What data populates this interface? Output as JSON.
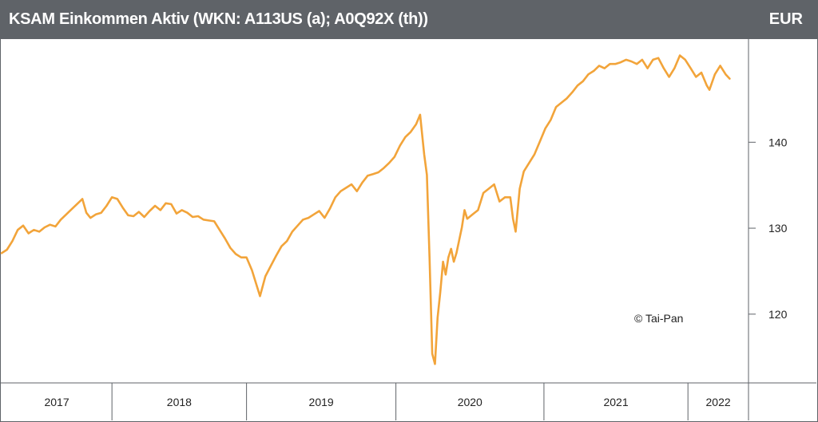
{
  "header": {
    "title": "KSAM Einkommen Aktiv (WKN: A113US (a); A0Q92X (th))",
    "currency": "EUR"
  },
  "copyright": "© Tai-Pan",
  "colors": {
    "line": "#f2a43a",
    "header_bg": "#5f6368",
    "border": "#5f6368"
  },
  "chart_data": {
    "type": "line",
    "title": "KSAM Einkommen Aktiv (WKN: A113US (a); A0Q92X (th))",
    "ylabel": "EUR",
    "yticks": [
      120,
      130,
      140
    ],
    "ylim": [
      112,
      152
    ],
    "xlim": [
      2017.0,
      2022.55
    ],
    "year_labels": [
      {
        "label": "2017",
        "start": 2017.0,
        "end": 2017.82
      },
      {
        "label": "2018",
        "start": 2017.82,
        "end": 2018.82
      },
      {
        "label": "2019",
        "start": 2018.82,
        "end": 2019.93
      },
      {
        "label": "2020",
        "start": 2019.93,
        "end": 2021.03
      },
      {
        "label": "2021",
        "start": 2021.03,
        "end": 2022.1
      },
      {
        "label": "2022",
        "start": 2022.1,
        "end": 2022.55
      }
    ],
    "series": [
      {
        "values": [
          [
            2017.0,
            127.1
          ],
          [
            2017.04,
            127.5
          ],
          [
            2017.08,
            128.5
          ],
          [
            2017.12,
            129.8
          ],
          [
            2017.16,
            130.3
          ],
          [
            2017.2,
            129.4
          ],
          [
            2017.24,
            129.8
          ],
          [
            2017.28,
            129.6
          ],
          [
            2017.32,
            130.1
          ],
          [
            2017.36,
            130.4
          ],
          [
            2017.4,
            130.2
          ],
          [
            2017.44,
            131.0
          ],
          [
            2017.48,
            131.6
          ],
          [
            2017.52,
            132.2
          ],
          [
            2017.56,
            132.8
          ],
          [
            2017.6,
            133.4
          ],
          [
            2017.63,
            131.8
          ],
          [
            2017.66,
            131.2
          ],
          [
            2017.7,
            131.6
          ],
          [
            2017.74,
            131.8
          ],
          [
            2017.78,
            132.6
          ],
          [
            2017.82,
            133.6
          ],
          [
            2017.86,
            133.4
          ],
          [
            2017.9,
            132.4
          ],
          [
            2017.94,
            131.5
          ],
          [
            2017.98,
            131.4
          ],
          [
            2018.02,
            131.9
          ],
          [
            2018.06,
            131.3
          ],
          [
            2018.1,
            132.0
          ],
          [
            2018.14,
            132.6
          ],
          [
            2018.18,
            132.1
          ],
          [
            2018.22,
            132.9
          ],
          [
            2018.26,
            132.8
          ],
          [
            2018.3,
            131.7
          ],
          [
            2018.34,
            132.1
          ],
          [
            2018.38,
            131.8
          ],
          [
            2018.42,
            131.3
          ],
          [
            2018.46,
            131.4
          ],
          [
            2018.5,
            131.0
          ],
          [
            2018.54,
            130.9
          ],
          [
            2018.58,
            130.8
          ],
          [
            2018.62,
            129.8
          ],
          [
            2018.66,
            128.8
          ],
          [
            2018.7,
            127.7
          ],
          [
            2018.74,
            127.0
          ],
          [
            2018.78,
            126.6
          ],
          [
            2018.82,
            126.6
          ],
          [
            2018.86,
            125.1
          ],
          [
            2018.9,
            123.1
          ],
          [
            2018.92,
            122.1
          ],
          [
            2018.96,
            124.4
          ],
          [
            2019.0,
            125.6
          ],
          [
            2019.04,
            126.8
          ],
          [
            2019.08,
            127.9
          ],
          [
            2019.12,
            128.5
          ],
          [
            2019.16,
            129.6
          ],
          [
            2019.2,
            130.3
          ],
          [
            2019.24,
            131.0
          ],
          [
            2019.28,
            131.2
          ],
          [
            2019.32,
            131.6
          ],
          [
            2019.36,
            132.0
          ],
          [
            2019.4,
            131.2
          ],
          [
            2019.44,
            132.3
          ],
          [
            2019.48,
            133.6
          ],
          [
            2019.52,
            134.3
          ],
          [
            2019.56,
            134.7
          ],
          [
            2019.6,
            135.1
          ],
          [
            2019.64,
            134.3
          ],
          [
            2019.68,
            135.3
          ],
          [
            2019.72,
            136.1
          ],
          [
            2019.76,
            136.3
          ],
          [
            2019.8,
            136.5
          ],
          [
            2019.84,
            137.0
          ],
          [
            2019.88,
            137.6
          ],
          [
            2019.92,
            138.3
          ],
          [
            2019.96,
            139.6
          ],
          [
            2020.0,
            140.6
          ],
          [
            2020.04,
            141.2
          ],
          [
            2020.08,
            142.1
          ],
          [
            2020.11,
            143.2
          ],
          [
            2020.14,
            138.6
          ],
          [
            2020.16,
            136.2
          ],
          [
            2020.18,
            126.6
          ],
          [
            2020.2,
            115.4
          ],
          [
            2020.22,
            114.2
          ],
          [
            2020.24,
            119.6
          ],
          [
            2020.26,
            122.6
          ],
          [
            2020.28,
            126.1
          ],
          [
            2020.3,
            124.6
          ],
          [
            2020.32,
            126.6
          ],
          [
            2020.34,
            127.6
          ],
          [
            2020.36,
            126.1
          ],
          [
            2020.38,
            127.1
          ],
          [
            2020.4,
            128.6
          ],
          [
            2020.42,
            130.1
          ],
          [
            2020.44,
            132.1
          ],
          [
            2020.46,
            131.1
          ],
          [
            2020.5,
            131.6
          ],
          [
            2020.54,
            132.1
          ],
          [
            2020.58,
            134.1
          ],
          [
            2020.62,
            134.6
          ],
          [
            2020.66,
            135.1
          ],
          [
            2020.7,
            133.1
          ],
          [
            2020.74,
            133.6
          ],
          [
            2020.78,
            133.6
          ],
          [
            2020.8,
            131.1
          ],
          [
            2020.82,
            129.6
          ],
          [
            2020.85,
            134.6
          ],
          [
            2020.88,
            136.6
          ],
          [
            2020.92,
            137.6
          ],
          [
            2020.96,
            138.6
          ],
          [
            2021.0,
            140.1
          ],
          [
            2021.04,
            141.6
          ],
          [
            2021.08,
            142.6
          ],
          [
            2021.12,
            144.1
          ],
          [
            2021.16,
            144.6
          ],
          [
            2021.2,
            145.1
          ],
          [
            2021.24,
            145.8
          ],
          [
            2021.28,
            146.6
          ],
          [
            2021.32,
            147.1
          ],
          [
            2021.36,
            147.9
          ],
          [
            2021.4,
            148.3
          ],
          [
            2021.44,
            148.9
          ],
          [
            2021.48,
            148.6
          ],
          [
            2021.52,
            149.1
          ],
          [
            2021.56,
            149.1
          ],
          [
            2021.6,
            149.3
          ],
          [
            2021.64,
            149.6
          ],
          [
            2021.68,
            149.4
          ],
          [
            2021.72,
            149.1
          ],
          [
            2021.76,
            149.6
          ],
          [
            2021.8,
            148.6
          ],
          [
            2021.84,
            149.6
          ],
          [
            2021.88,
            149.8
          ],
          [
            2021.92,
            148.6
          ],
          [
            2021.96,
            147.6
          ],
          [
            2022.0,
            148.6
          ],
          [
            2022.04,
            150.1
          ],
          [
            2022.08,
            149.6
          ],
          [
            2022.12,
            148.6
          ],
          [
            2022.16,
            147.6
          ],
          [
            2022.2,
            148.1
          ],
          [
            2022.24,
            146.6
          ],
          [
            2022.26,
            146.1
          ],
          [
            2022.3,
            147.9
          ],
          [
            2022.34,
            148.9
          ],
          [
            2022.38,
            147.9
          ],
          [
            2022.41,
            147.4
          ]
        ]
      }
    ]
  }
}
